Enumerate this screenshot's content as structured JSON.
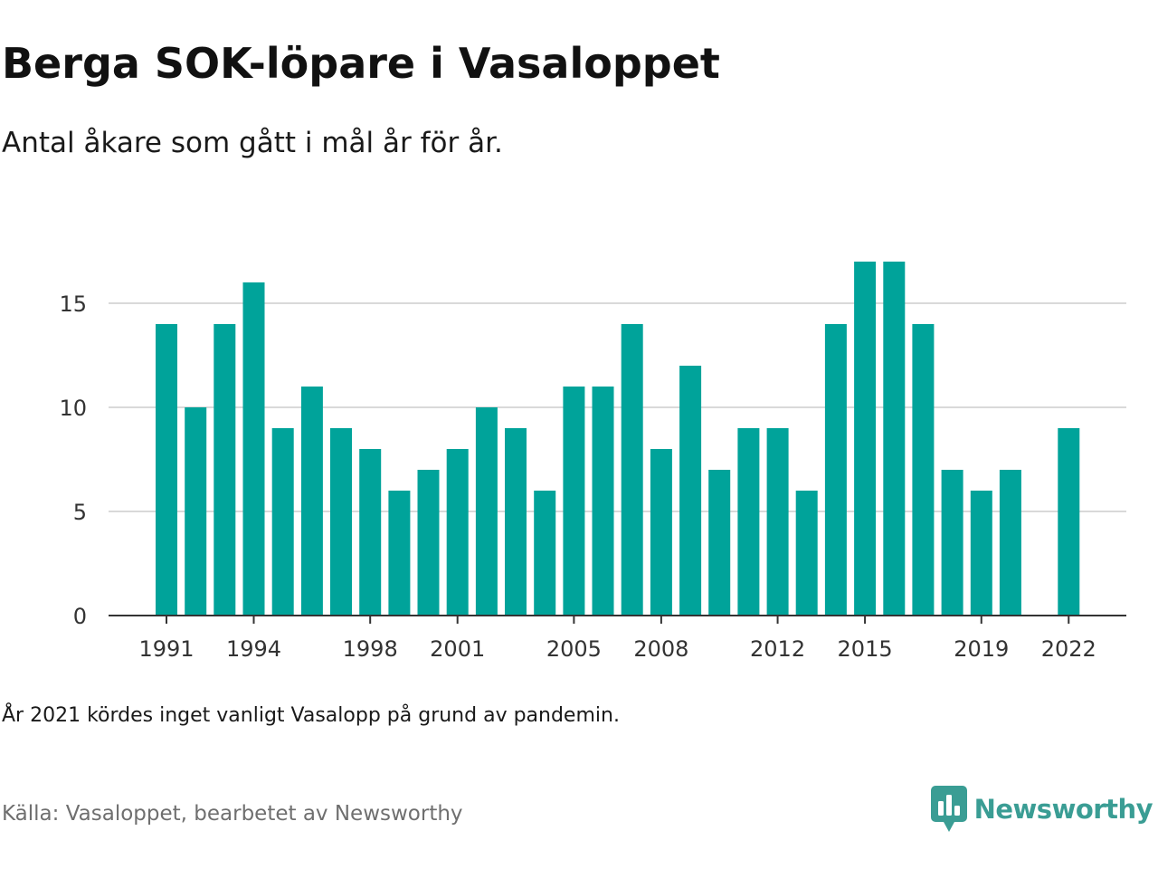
{
  "header": {
    "title": "Berga SOK-löpare i Vasaloppet",
    "subtitle": "Antal åkare som gått i mål år för år."
  },
  "footer": {
    "note": "År 2021 kördes inget vanligt Vasalopp på grund av pandemin.",
    "source": "Källa: Vasaloppet, bearbetet av Newsworthy",
    "brand": "Newsworthy"
  },
  "colors": {
    "bar": "#00a39a",
    "grid": "#d9d9d9",
    "axis": "#333333",
    "brand": "#3a9d94"
  },
  "icons": {
    "brand_logo": "newsworthy-chart-bubble-icon"
  },
  "chart_data": {
    "type": "bar",
    "title": "Berga SOK-löpare i Vasaloppet",
    "subtitle": "Antal åkare som gått i mål år för år.",
    "xlabel": "",
    "ylabel": "",
    "categories": [
      1991,
      1992,
      1993,
      1994,
      1995,
      1996,
      1997,
      1998,
      1999,
      2000,
      2001,
      2002,
      2003,
      2004,
      2005,
      2006,
      2007,
      2008,
      2009,
      2010,
      2011,
      2012,
      2013,
      2014,
      2015,
      2016,
      2017,
      2018,
      2019,
      2020,
      2021,
      2022
    ],
    "values": [
      14,
      10,
      14,
      16,
      9,
      11,
      9,
      8,
      6,
      7,
      8,
      10,
      9,
      6,
      11,
      11,
      14,
      8,
      12,
      7,
      9,
      9,
      6,
      14,
      17,
      17,
      14,
      7,
      6,
      7,
      null,
      9
    ],
    "x_tick_labels": [
      "1991",
      "1994",
      "1998",
      "2001",
      "2005",
      "2008",
      "2012",
      "2015",
      "2019",
      "2022"
    ],
    "y_ticks": [
      0,
      5,
      10,
      15
    ],
    "ylim": [
      0,
      19
    ],
    "grid": true,
    "legend": "none"
  }
}
